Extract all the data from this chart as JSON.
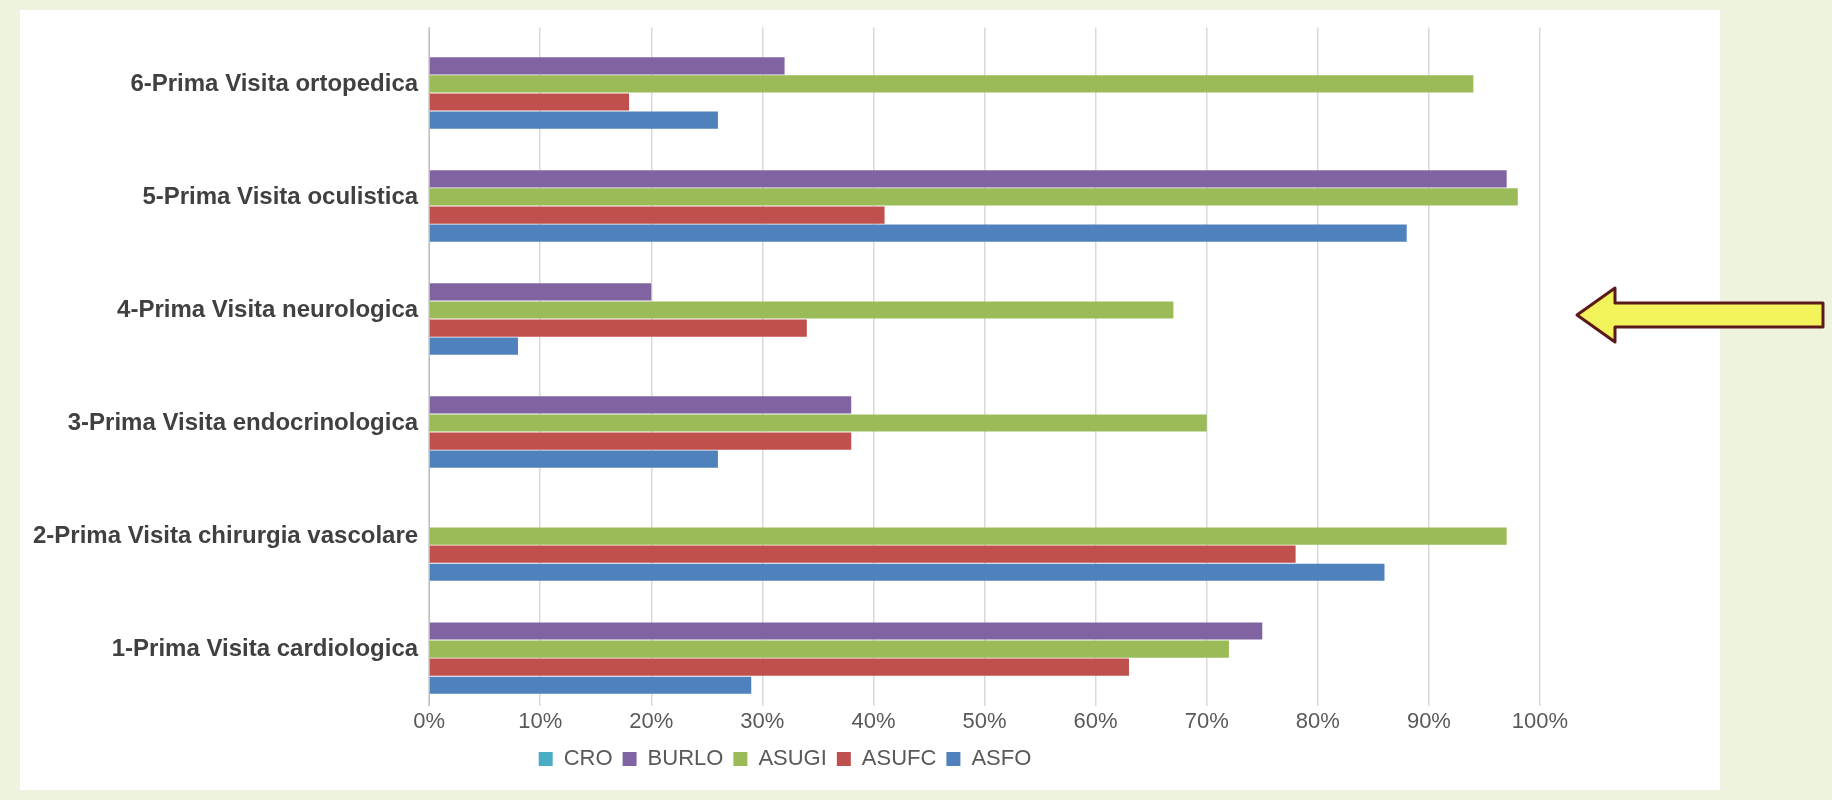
{
  "chart_data": {
    "type": "bar",
    "orientation": "horizontal",
    "categories": [
      "6-Prima Visita ortopedica",
      "5-Prima Visita oculistica",
      "4-Prima Visita neurologica",
      "3-Prima Visita endocrinologica",
      "2-Prima Visita chirurgia vascolare",
      "1-Prima Visita cardiologica"
    ],
    "series": [
      {
        "name": "CRO",
        "color": "#4bacc6",
        "values": [
          null,
          null,
          null,
          null,
          null,
          null
        ]
      },
      {
        "name": "BURLO",
        "color": "#8064a2",
        "values": [
          32,
          97,
          20,
          38,
          null,
          75
        ]
      },
      {
        "name": "ASUGI",
        "color": "#9bbb59",
        "values": [
          94,
          98,
          67,
          70,
          97,
          72
        ]
      },
      {
        "name": "ASUFC",
        "color": "#c0504d",
        "values": [
          18,
          41,
          34,
          38,
          78,
          63
        ]
      },
      {
        "name": "ASFO",
        "color": "#4f81bd",
        "values": [
          26,
          88,
          8,
          26,
          86,
          29
        ]
      }
    ],
    "xlim": [
      0,
      100
    ],
    "xticks": [
      {
        "value": 0,
        "label": "0%"
      },
      {
        "value": 10,
        "label": "10%"
      },
      {
        "value": 20,
        "label": "20%"
      },
      {
        "value": 30,
        "label": "30%"
      },
      {
        "value": 40,
        "label": "40%"
      },
      {
        "value": 50,
        "label": "50%"
      },
      {
        "value": 60,
        "label": "60%"
      },
      {
        "value": 70,
        "label": "70%"
      },
      {
        "value": 80,
        "label": "80%"
      },
      {
        "value": 90,
        "label": "90%"
      },
      {
        "value": 100,
        "label": "100%"
      }
    ],
    "grid": "x",
    "legend": "bottom"
  }
}
